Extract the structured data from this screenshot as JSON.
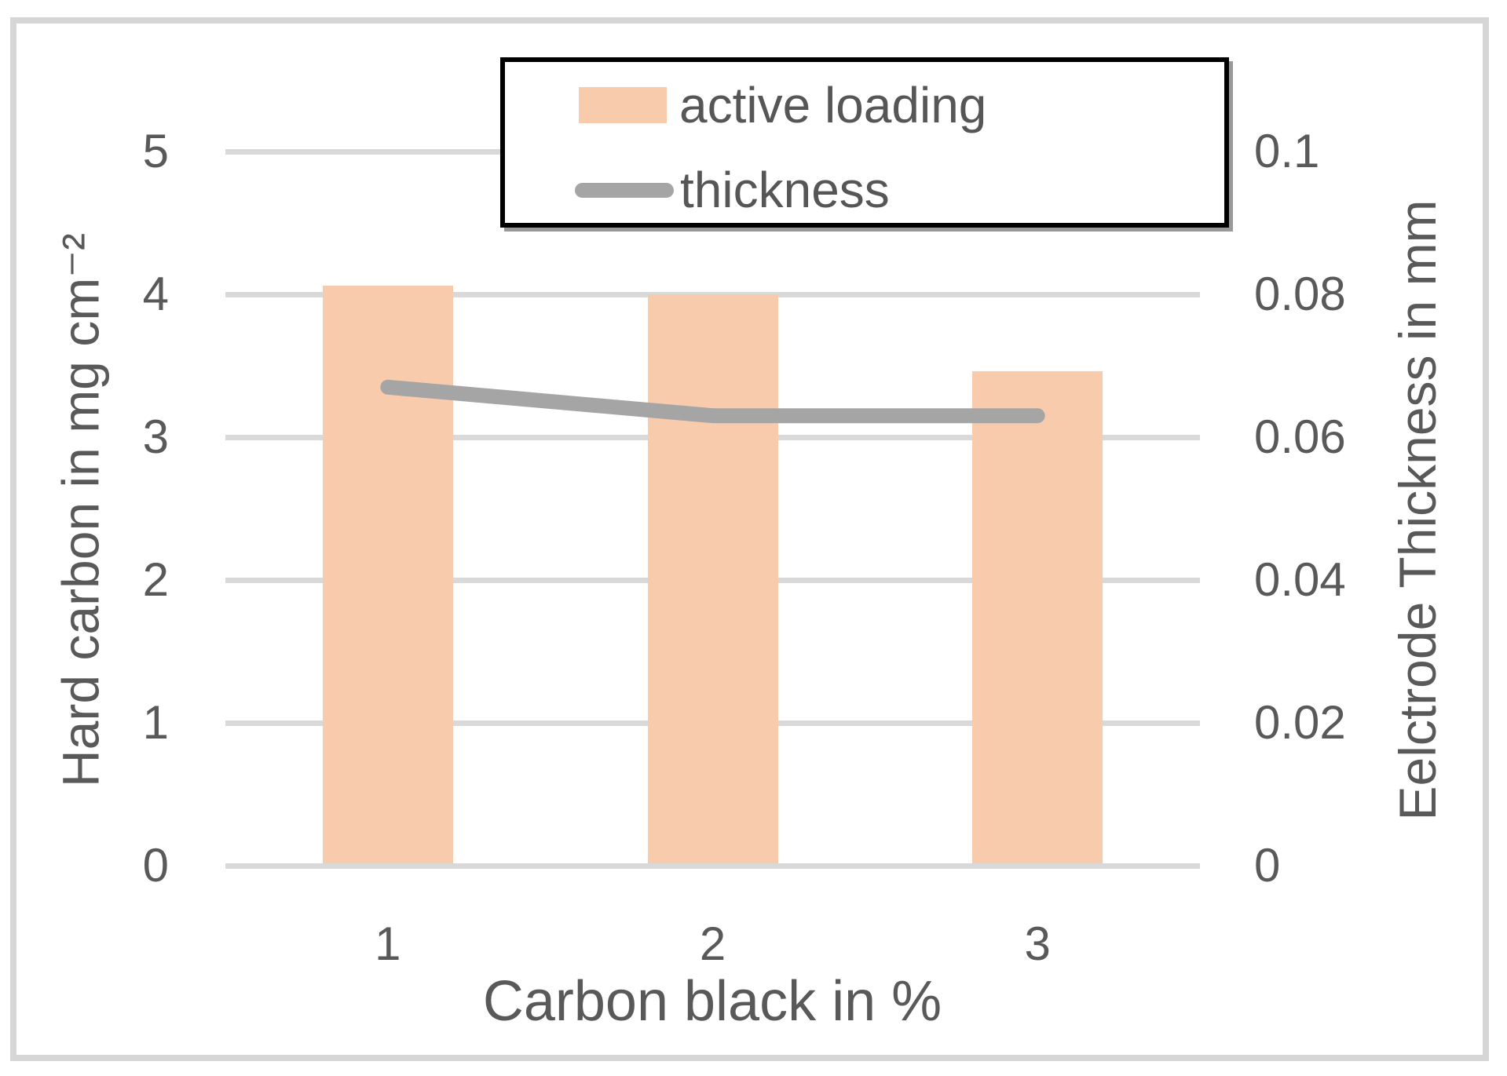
{
  "chart_data": {
    "type": "bar",
    "subtype": "bar+line combo, dual axis",
    "categories": [
      "1",
      "2",
      "3"
    ],
    "series": [
      {
        "name": "active loading",
        "type": "bar",
        "axis": "left",
        "values": [
          4.06,
          4.0,
          3.46
        ],
        "color": "#F8CBAD"
      },
      {
        "name": "thickness",
        "type": "line",
        "axis": "right",
        "values": [
          0.067,
          0.063,
          0.063
        ],
        "color": "#A5A5A5"
      }
    ],
    "left_axis": {
      "title": "Hard carbon in mg cm⁻²",
      "min": 0,
      "max": 5,
      "tick_labels": [
        "5",
        "4",
        "3",
        "2",
        "1",
        "0"
      ],
      "tick_values": [
        5,
        4,
        3,
        2,
        1,
        0
      ]
    },
    "right_axis": {
      "title": "Eelctrode Thickness in mm",
      "min": 0,
      "max": 0.1,
      "tick_labels": [
        "0.1",
        "0.08",
        "0.06",
        "0.04",
        "0.02",
        "0"
      ],
      "tick_values": [
        0.1,
        0.08,
        0.06,
        0.04,
        0.02,
        0
      ]
    },
    "x_axis": {
      "title": "Carbon black in %"
    },
    "legend": {
      "position": "top-center",
      "border": true,
      "entries": [
        "active loading",
        "thickness"
      ]
    },
    "grid": true,
    "colors": {
      "bar_fill": "#F8CBAD",
      "line_stroke": "#A5A5A5",
      "gridline": "#D9D9D9",
      "text": "#595959",
      "legend_border": "#000000",
      "outer_frame": "#D6D6D6",
      "background": "#FFFFFF"
    }
  }
}
